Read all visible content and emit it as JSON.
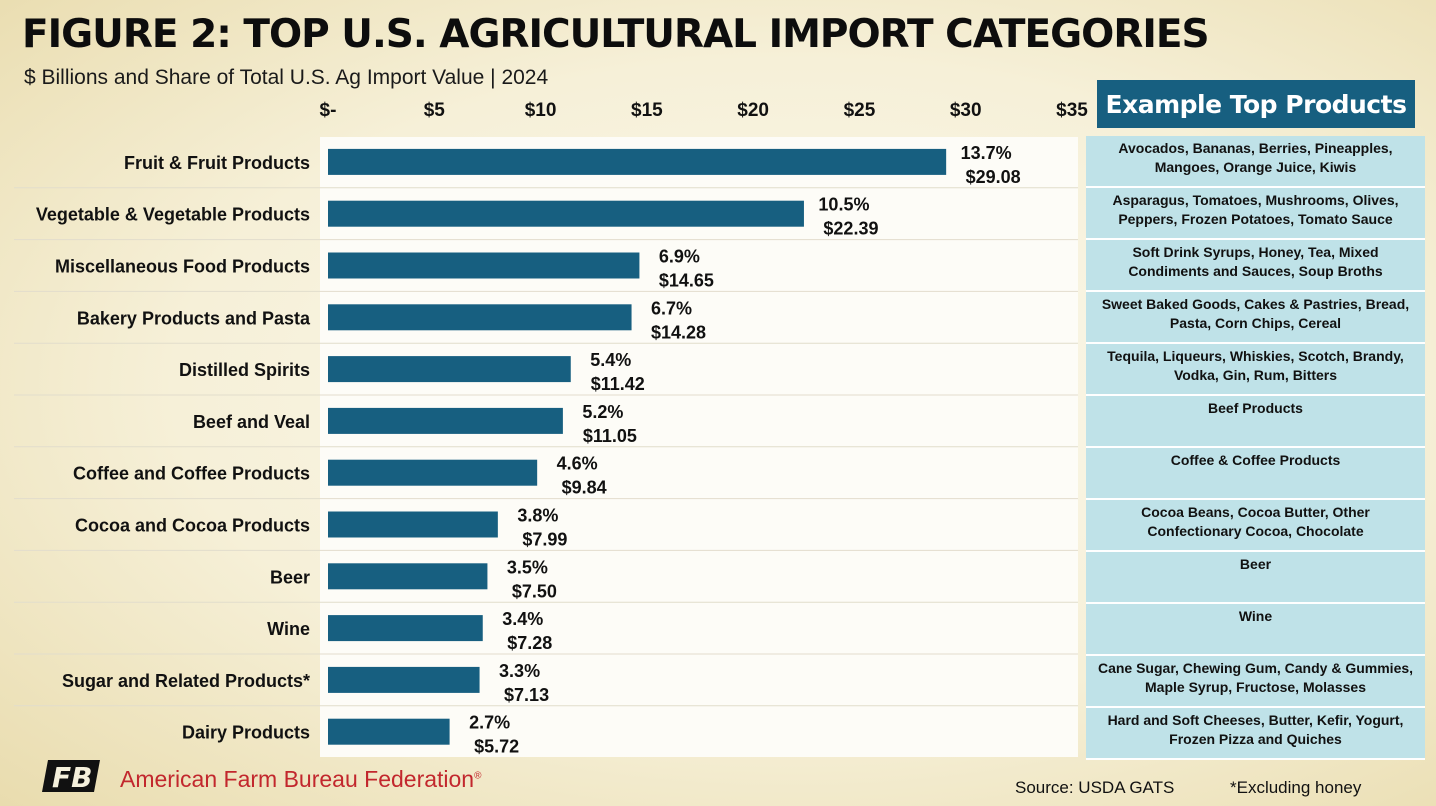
{
  "header": {
    "title": "FIGURE 2: TOP U.S. AGRICULTURAL IMPORT CATEGORIES",
    "subtitle": "$ Billions and Share of Total U.S. Ag Import Value | 2024"
  },
  "chart_data": {
    "type": "bar",
    "orientation": "horizontal",
    "title": "FIGURE 2: TOP U.S. AGRICULTURAL IMPORT CATEGORIES",
    "subtitle": "$ Billions and Share of Total U.S. Ag Import Value | 2024",
    "xlim": [
      0,
      35
    ],
    "x_ticks": [
      "$-",
      "$5",
      "$10",
      "$15",
      "$20",
      "$25",
      "$30",
      "$35"
    ],
    "x_tick_values": [
      0,
      5,
      10,
      15,
      20,
      25,
      30,
      35
    ],
    "x_axis_position": "top",
    "grid": "horizontal separators between categories",
    "categories": [
      "Fruit & Fruit Products",
      "Vegetable & Vegetable Products",
      "Miscellaneous Food Products",
      "Bakery Products and Pasta",
      "Distilled Spirits",
      "Beef and Veal",
      "Coffee and Coffee Products",
      "Cocoa and Cocoa Products",
      "Beer",
      "Wine",
      "Sugar and Related Products*",
      "Dairy Products"
    ],
    "values": [
      29.08,
      22.39,
      14.65,
      14.28,
      11.42,
      11.05,
      9.84,
      7.99,
      7.5,
      7.28,
      7.13,
      5.72
    ],
    "value_labels": [
      "$29.08",
      "$22.39",
      "$14.65",
      "$14.28",
      "$11.42",
      "$11.05",
      "$9.84",
      "$7.99",
      "$7.50",
      "$7.28",
      "$7.13",
      "$5.72"
    ],
    "share_labels": [
      "13.7%",
      "10.5%",
      "6.9%",
      "6.7%",
      "5.4%",
      "5.2%",
      "4.6%",
      "3.8%",
      "3.5%",
      "3.4%",
      "3.3%",
      "2.7%"
    ],
    "bar_color": "#175f80"
  },
  "products": {
    "header": "Example Top Products",
    "items": [
      "Avocados, Bananas, Berries, Pineapples, Mangoes, Orange Juice, Kiwis",
      "Asparagus, Tomatoes, Mushrooms, Olives, Peppers, Frozen Potatoes, Tomato Sauce",
      "Soft Drink Syrups, Honey, Tea, Mixed Condiments and Sauces, Soup Broths",
      "Sweet Baked Goods, Cakes & Pastries, Bread, Pasta, Corn Chips, Cereal",
      "Tequila, Liqueurs, Whiskies, Scotch, Brandy, Vodka, Gin, Rum, Bitters",
      "Beef Products",
      "Coffee & Coffee Products",
      "Cocoa Beans, Cocoa Butter, Other Confectionary Cocoa, Chocolate",
      "Beer",
      "Wine",
      "Cane Sugar, Chewing Gum, Candy & Gummies, Maple Syrup, Fructose, Molasses",
      "Hard and Soft Cheeses, Butter, Kefir, Yogurt, Frozen Pizza and Quiches"
    ],
    "cell_color": "#bfe2e8",
    "header_color": "#175f80"
  },
  "footer": {
    "logo_text": "FB",
    "organization": "American Farm Bureau Federation",
    "trademark": "®",
    "source": "Source: USDA GATS",
    "note": "*Excluding honey"
  },
  "colors": {
    "accent_red": "#c2272d",
    "bar_blue": "#175f80"
  }
}
